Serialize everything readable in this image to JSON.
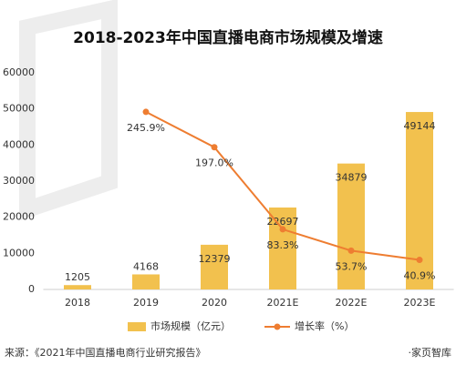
{
  "chart_data": {
    "type": "bar-line",
    "title": "2018-2023年中国直播电商市场规模及增速",
    "categories": [
      "2018",
      "2019",
      "2020",
      "2021E",
      "2022E",
      "2023E"
    ],
    "series": [
      {
        "name": "市场规模（亿元）",
        "type": "bar",
        "color": "#f2c14e",
        "values": [
          1205,
          4168,
          12379,
          22697,
          34879,
          49144
        ]
      },
      {
        "name": "增长率（%）",
        "type": "line",
        "axis": "y2",
        "color": "#ee7d31",
        "values": [
          null,
          245.9,
          197.0,
          83.3,
          53.7,
          40.9
        ],
        "value_labels": [
          null,
          "245.9%",
          "197.0%",
          "83.3%",
          "53.7%",
          "40.9%"
        ]
      }
    ],
    "ylim": [
      0,
      60000
    ],
    "yticks": [
      0,
      10000,
      20000,
      30000,
      40000,
      50000,
      60000
    ],
    "y2lim": [
      0,
      300
    ],
    "source": "来源：《2021年中国直播电商行业研究报告》",
    "brand": "·家页智库"
  }
}
